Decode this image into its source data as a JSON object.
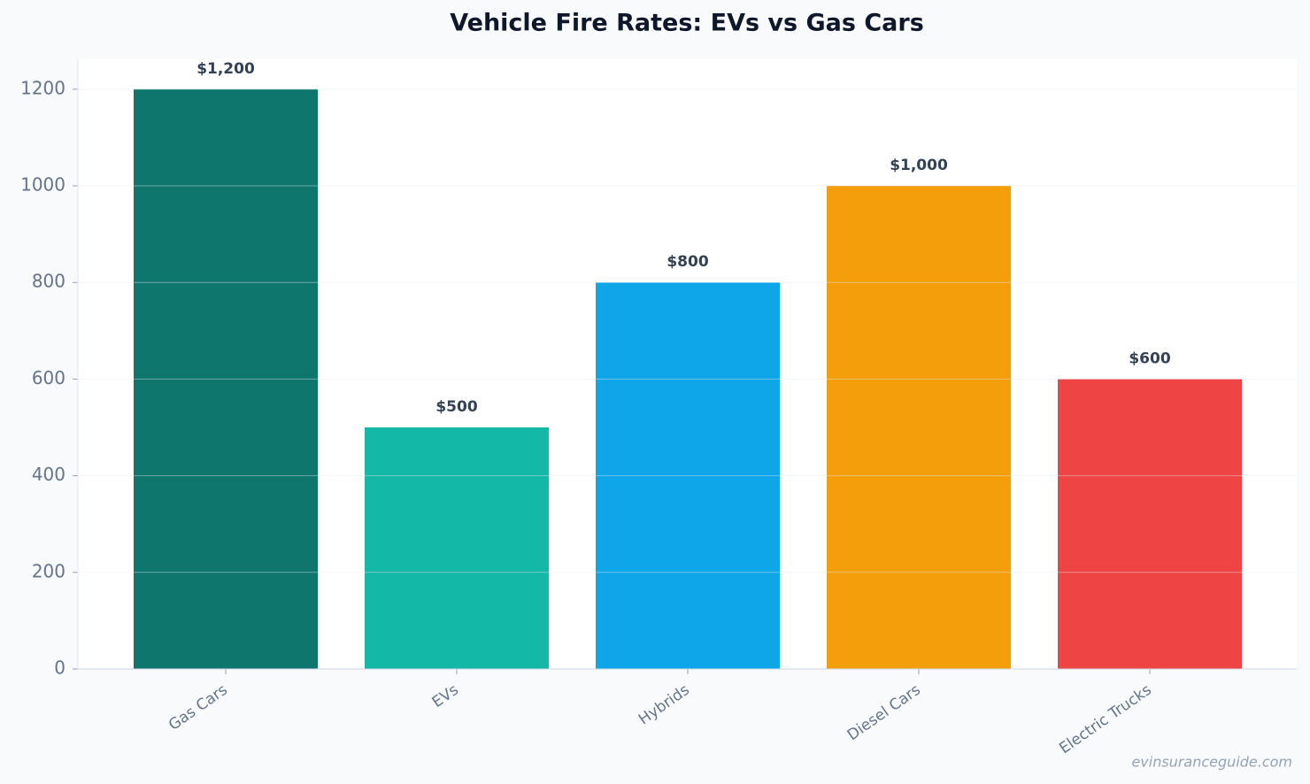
{
  "chart_data": {
    "type": "bar",
    "title": "Vehicle Fire Rates: EVs vs Gas Cars",
    "categories": [
      "Gas Cars",
      "EVs",
      "Hybrids",
      "Diesel Cars",
      "Electric Trucks"
    ],
    "values": [
      1200,
      500,
      800,
      1000,
      600
    ],
    "value_labels": [
      "$1,200",
      "$500",
      "$800",
      "$1,000",
      "$600"
    ],
    "colors": [
      "#0f766e",
      "#14b8a6",
      "#0ea5e9",
      "#f59e0b",
      "#ef4444"
    ],
    "ylim": [
      0,
      1262
    ],
    "yticks": [
      0,
      200,
      400,
      600,
      800,
      1000,
      1200
    ],
    "grid": true,
    "watermark": "evinsuranceguide.com"
  }
}
